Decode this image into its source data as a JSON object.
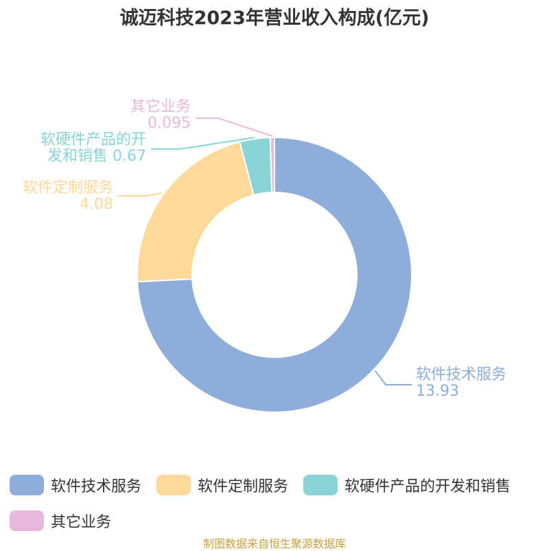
{
  "title": "诚迈科技2023年营业收入构成(亿元)",
  "source": "制图数据来自恒生聚源数据库",
  "colors": [
    "#8eadda",
    "#fed999",
    "#88d4d6",
    "#e8b9da"
  ],
  "chart_data": {
    "type": "pie",
    "donut": true,
    "title": "诚迈科技2023年营业收入构成(亿元)",
    "categories": [
      "软件技术服务",
      "软件定制服务",
      "软硬件产品的开发和销售",
      "其它业务"
    ],
    "values": [
      13.93,
      4.08,
      0.67,
      0.095
    ],
    "data_labels": [
      {
        "lines": [
          "软件技术服务",
          "13.93"
        ]
      },
      {
        "lines": [
          "软件定制服务",
          "4.08"
        ]
      },
      {
        "lines": [
          "软硬件产品的开",
          "发和销售 0.67"
        ]
      },
      {
        "lines": [
          "其它业务",
          "0.095"
        ]
      }
    ],
    "legend_position": "bottom"
  },
  "legend": {
    "rows": [
      [
        {
          "label": "软件技术服务"
        },
        {
          "label": "软件定制服务"
        },
        {
          "label": "软硬件产品的开发和销售"
        }
      ],
      [
        {
          "label": "其它业务"
        }
      ]
    ]
  }
}
